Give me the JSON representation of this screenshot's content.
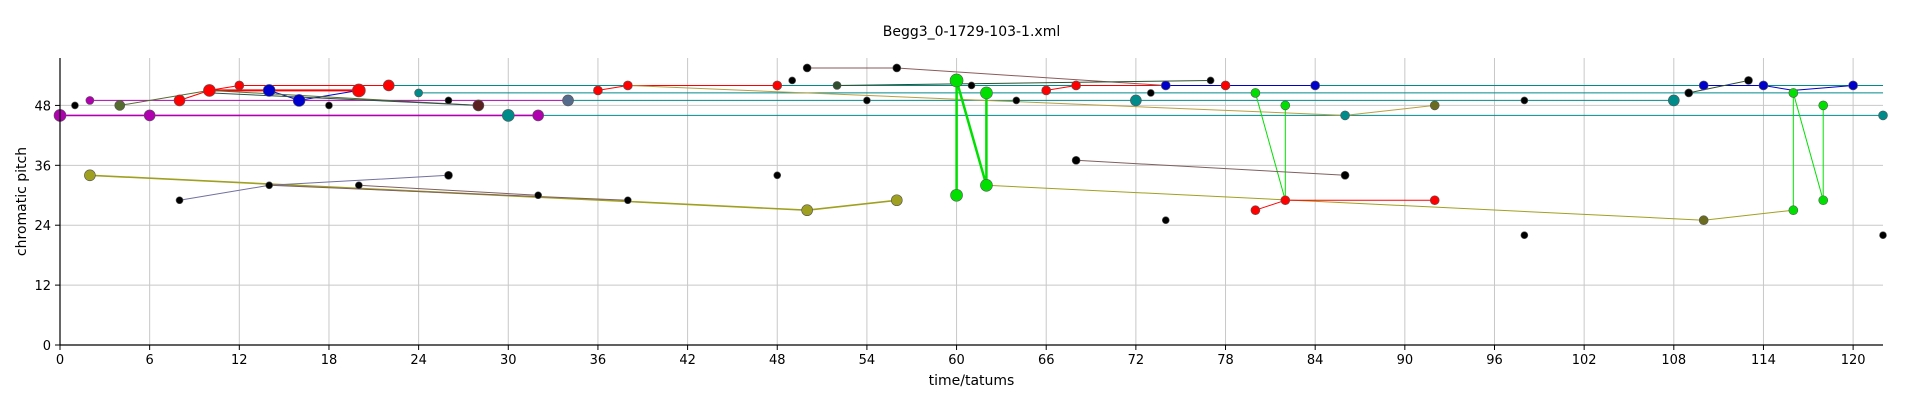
{
  "chart_data": {
    "type": "scatter",
    "title": "Begg3_0-1729-103-1.xml",
    "xlabel": "time/tatums",
    "ylabel": "chromatic pitch",
    "xlim": [
      0,
      122
    ],
    "ylim": [
      0,
      57.5
    ],
    "x_ticks": [
      0,
      6,
      12,
      18,
      24,
      30,
      36,
      42,
      48,
      54,
      60,
      66,
      72,
      78,
      84,
      90,
      96,
      102,
      108,
      114,
      120
    ],
    "y_ticks": [
      0,
      12,
      24,
      36,
      48
    ],
    "grid": true,
    "legend": "none",
    "lines": [
      {
        "color": "#008b8b",
        "width": 1,
        "points": [
          [
            24,
            50.5
          ],
          [
            122,
            50.5
          ]
        ]
      },
      {
        "color": "#008b8b",
        "width": 1,
        "points": [
          [
            30,
            46
          ],
          [
            122,
            46
          ]
        ]
      },
      {
        "color": "#008b8b",
        "width": 1,
        "points": [
          [
            22,
            52
          ],
          [
            122,
            52
          ]
        ]
      },
      {
        "color": "#008b8b",
        "width": 1,
        "points": [
          [
            34,
            49
          ],
          [
            108,
            49
          ]
        ]
      },
      {
        "color": "#b000b0",
        "width": 1.6,
        "points": [
          [
            0,
            46
          ],
          [
            32,
            46
          ]
        ]
      },
      {
        "color": "#b000b0",
        "width": 1,
        "points": [
          [
            2,
            49
          ],
          [
            34,
            49
          ]
        ]
      },
      {
        "color": "#ff0000",
        "width": 1,
        "points": [
          [
            8,
            49
          ],
          [
            10,
            51
          ],
          [
            12,
            52
          ],
          [
            22,
            52
          ]
        ]
      },
      {
        "color": "#ff0000",
        "width": 2,
        "points": [
          [
            10,
            51
          ],
          [
            20,
            51
          ]
        ]
      },
      {
        "color": "#ff0000",
        "width": 1,
        "points": [
          [
            36,
            51
          ],
          [
            38,
            52
          ],
          [
            48,
            52
          ]
        ]
      },
      {
        "color": "#ff0000",
        "width": 1,
        "points": [
          [
            66,
            51
          ],
          [
            68,
            52
          ],
          [
            78,
            52
          ]
        ]
      },
      {
        "color": "#0000cc",
        "width": 1,
        "points": [
          [
            14,
            51
          ],
          [
            16,
            49
          ],
          [
            20,
            51
          ]
        ]
      },
      {
        "color": "#0000cc",
        "width": 1,
        "points": [
          [
            74,
            52
          ],
          [
            78,
            52
          ],
          [
            84,
            52
          ]
        ]
      },
      {
        "color": "#0000cc",
        "width": 1,
        "points": [
          [
            110,
            52
          ],
          [
            114,
            52
          ],
          [
            116,
            51
          ],
          [
            120,
            52
          ]
        ]
      },
      {
        "color": "#8b5a5a",
        "width": 1,
        "points": [
          [
            50,
            55.5
          ],
          [
            56,
            55.5
          ],
          [
            74,
            52
          ]
        ]
      },
      {
        "color": "#2f4f2f",
        "width": 1,
        "points": [
          [
            52,
            52
          ],
          [
            77,
            53
          ]
        ]
      },
      {
        "color": "#556b2f",
        "width": 1,
        "points": [
          [
            4,
            48
          ],
          [
            10,
            51
          ],
          [
            28,
            48
          ]
        ]
      },
      {
        "color": "#2f4f4f",
        "width": 1,
        "points": [
          [
            10,
            50.5
          ],
          [
            28,
            48
          ]
        ]
      },
      {
        "color": "#2f4f2f",
        "width": 1,
        "points": [
          [
            109,
            50.5
          ],
          [
            113,
            53
          ]
        ]
      },
      {
        "color": "#b8a040",
        "width": 1,
        "points": [
          [
            38,
            52
          ],
          [
            86,
            46
          ],
          [
            92,
            48
          ]
        ]
      },
      {
        "color": "#00e000",
        "width": 2.5,
        "points": [
          [
            60,
            53
          ],
          [
            60,
            30
          ]
        ]
      },
      {
        "color": "#00e000",
        "width": 2.5,
        "points": [
          [
            60,
            53
          ],
          [
            62,
            32
          ],
          [
            62,
            50.5
          ]
        ]
      },
      {
        "color": "#00e000",
        "width": 1,
        "points": [
          [
            80,
            50.5
          ],
          [
            82,
            29
          ],
          [
            82,
            48
          ]
        ]
      },
      {
        "color": "#00e000",
        "width": 1,
        "points": [
          [
            116,
            50.5
          ],
          [
            116,
            27
          ]
        ]
      },
      {
        "color": "#00e000",
        "width": 1,
        "points": [
          [
            116,
            50.5
          ],
          [
            118,
            29
          ],
          [
            118,
            48
          ]
        ]
      },
      {
        "color": "#a0a020",
        "width": 1.6,
        "points": [
          [
            2,
            34
          ],
          [
            50,
            27
          ],
          [
            56,
            29
          ]
        ]
      },
      {
        "color": "#a0a020",
        "width": 1,
        "points": [
          [
            62,
            32
          ],
          [
            110,
            25
          ],
          [
            116,
            27
          ]
        ]
      },
      {
        "color": "#7070a0",
        "width": 1,
        "points": [
          [
            8,
            29
          ],
          [
            14,
            32
          ],
          [
            26,
            34
          ]
        ]
      },
      {
        "color": "#806060",
        "width": 1,
        "points": [
          [
            14,
            32
          ],
          [
            38,
            29
          ]
        ]
      },
      {
        "color": "#806060",
        "width": 1,
        "points": [
          [
            20,
            32
          ],
          [
            32,
            30
          ]
        ]
      },
      {
        "color": "#806060",
        "width": 1,
        "points": [
          [
            68,
            37
          ],
          [
            86,
            34
          ]
        ]
      },
      {
        "color": "#ff0000",
        "width": 1,
        "points": [
          [
            80,
            27
          ],
          [
            82,
            29
          ],
          [
            92,
            29
          ]
        ]
      }
    ],
    "points": [
      {
        "x": 0,
        "y": 46,
        "color": "#b000b0",
        "r": 6
      },
      {
        "x": 1,
        "y": 48,
        "color": "#000000",
        "r": 3.5
      },
      {
        "x": 2,
        "y": 49,
        "color": "#b000b0",
        "r": 4
      },
      {
        "x": 2,
        "y": 34,
        "color": "#a0a020",
        "r": 5.5
      },
      {
        "x": 4,
        "y": 48,
        "color": "#556b2f",
        "r": 5
      },
      {
        "x": 6,
        "y": 46,
        "color": "#b000b0",
        "r": 5.5
      },
      {
        "x": 8,
        "y": 49,
        "color": "#ff0000",
        "r": 5.5
      },
      {
        "x": 8,
        "y": 29,
        "color": "#000000",
        "r": 3.5
      },
      {
        "x": 10,
        "y": 51,
        "color": "#ff0000",
        "r": 6
      },
      {
        "x": 12,
        "y": 52,
        "color": "#ff0000",
        "r": 4.5
      },
      {
        "x": 14,
        "y": 51,
        "color": "#0000cc",
        "r": 6
      },
      {
        "x": 14,
        "y": 32,
        "color": "#000000",
        "r": 3.5
      },
      {
        "x": 16,
        "y": 49,
        "color": "#0000cc",
        "r": 6
      },
      {
        "x": 18,
        "y": 48,
        "color": "#000000",
        "r": 3.5
      },
      {
        "x": 20,
        "y": 51,
        "color": "#ff0000",
        "r": 6.5
      },
      {
        "x": 20,
        "y": 32,
        "color": "#000000",
        "r": 3.5
      },
      {
        "x": 22,
        "y": 52,
        "color": "#ff0000",
        "r": 5.5
      },
      {
        "x": 24,
        "y": 50.5,
        "color": "#008b8b",
        "r": 4
      },
      {
        "x": 26,
        "y": 49,
        "color": "#000000",
        "r": 3.5
      },
      {
        "x": 26,
        "y": 34,
        "color": "#000000",
        "r": 4
      },
      {
        "x": 28,
        "y": 48,
        "color": "#5a2020",
        "r": 5.5
      },
      {
        "x": 30,
        "y": 46,
        "color": "#008b8b",
        "r": 6
      },
      {
        "x": 32,
        "y": 46,
        "color": "#b000b0",
        "r": 5.5
      },
      {
        "x": 32,
        "y": 30,
        "color": "#000000",
        "r": 3.5
      },
      {
        "x": 34,
        "y": 49,
        "color": "#556b8b",
        "r": 5.5
      },
      {
        "x": 36,
        "y": 51,
        "color": "#ff0000",
        "r": 4.5
      },
      {
        "x": 38,
        "y": 52,
        "color": "#ff0000",
        "r": 4.5
      },
      {
        "x": 38,
        "y": 29,
        "color": "#000000",
        "r": 3.5
      },
      {
        "x": 48,
        "y": 52,
        "color": "#ff0000",
        "r": 4.5
      },
      {
        "x": 48,
        "y": 34,
        "color": "#000000",
        "r": 3.5
      },
      {
        "x": 49,
        "y": 53,
        "color": "#000000",
        "r": 3.5
      },
      {
        "x": 50,
        "y": 55.5,
        "color": "#000000",
        "r": 4
      },
      {
        "x": 50,
        "y": 27,
        "color": "#a0a020",
        "r": 5.5
      },
      {
        "x": 52,
        "y": 52,
        "color": "#2f4f2f",
        "r": 4
      },
      {
        "x": 54,
        "y": 49,
        "color": "#000000",
        "r": 3.5
      },
      {
        "x": 56,
        "y": 55.5,
        "color": "#000000",
        "r": 4
      },
      {
        "x": 56,
        "y": 29,
        "color": "#a0a020",
        "r": 5.5
      },
      {
        "x": 60,
        "y": 53,
        "color": "#00e000",
        "r": 6.5
      },
      {
        "x": 60,
        "y": 30,
        "color": "#00e000",
        "r": 6
      },
      {
        "x": 61,
        "y": 52,
        "color": "#000000",
        "r": 3.5
      },
      {
        "x": 62,
        "y": 50.5,
        "color": "#00e000",
        "r": 6
      },
      {
        "x": 62,
        "y": 32,
        "color": "#00e000",
        "r": 6
      },
      {
        "x": 64,
        "y": 49,
        "color": "#000000",
        "r": 3.5
      },
      {
        "x": 66,
        "y": 51,
        "color": "#ff0000",
        "r": 4.5
      },
      {
        "x": 68,
        "y": 52,
        "color": "#ff0000",
        "r": 4.5
      },
      {
        "x": 68,
        "y": 37,
        "color": "#000000",
        "r": 4
      },
      {
        "x": 72,
        "y": 49,
        "color": "#008b8b",
        "r": 5.5
      },
      {
        "x": 73,
        "y": 50.5,
        "color": "#000000",
        "r": 3.5
      },
      {
        "x": 74,
        "y": 52,
        "color": "#0000cc",
        "r": 4.5
      },
      {
        "x": 74,
        "y": 25,
        "color": "#000000",
        "r": 3.5
      },
      {
        "x": 77,
        "y": 53,
        "color": "#000000",
        "r": 3.5
      },
      {
        "x": 78,
        "y": 52,
        "color": "#ff0000",
        "r": 4.5
      },
      {
        "x": 80,
        "y": 50.5,
        "color": "#00e000",
        "r": 4.5
      },
      {
        "x": 80,
        "y": 27,
        "color": "#ff0000",
        "r": 4.5
      },
      {
        "x": 82,
        "y": 48,
        "color": "#00e000",
        "r": 4.5
      },
      {
        "x": 82,
        "y": 29,
        "color": "#ff0000",
        "r": 4.5
      },
      {
        "x": 84,
        "y": 52,
        "color": "#0000cc",
        "r": 4.5
      },
      {
        "x": 86,
        "y": 46,
        "color": "#008b8b",
        "r": 4.5
      },
      {
        "x": 86,
        "y": 34,
        "color": "#000000",
        "r": 4
      },
      {
        "x": 92,
        "y": 48,
        "color": "#6b6b20",
        "r": 4.5
      },
      {
        "x": 92,
        "y": 29,
        "color": "#ff0000",
        "r": 4.5
      },
      {
        "x": 98,
        "y": 49,
        "color": "#000000",
        "r": 3.5
      },
      {
        "x": 98,
        "y": 22,
        "color": "#000000",
        "r": 3.5
      },
      {
        "x": 108,
        "y": 49,
        "color": "#008b8b",
        "r": 5.5
      },
      {
        "x": 109,
        "y": 50.5,
        "color": "#000000",
        "r": 4
      },
      {
        "x": 110,
        "y": 52,
        "color": "#0000cc",
        "r": 4.5
      },
      {
        "x": 110,
        "y": 25,
        "color": "#6b6b20",
        "r": 4.5
      },
      {
        "x": 113,
        "y": 53,
        "color": "#000000",
        "r": 4
      },
      {
        "x": 114,
        "y": 52,
        "color": "#0000cc",
        "r": 4.5
      },
      {
        "x": 116,
        "y": 50.5,
        "color": "#00e000",
        "r": 4.5
      },
      {
        "x": 116,
        "y": 27,
        "color": "#00e000",
        "r": 4.5
      },
      {
        "x": 118,
        "y": 48,
        "color": "#00e000",
        "r": 4.5
      },
      {
        "x": 118,
        "y": 29,
        "color": "#00e000",
        "r": 4.5
      },
      {
        "x": 120,
        "y": 52,
        "color": "#0000cc",
        "r": 4.5
      },
      {
        "x": 122,
        "y": 46,
        "color": "#008b8b",
        "r": 4.5
      },
      {
        "x": 122,
        "y": 22,
        "color": "#000000",
        "r": 3.5
      }
    ]
  }
}
